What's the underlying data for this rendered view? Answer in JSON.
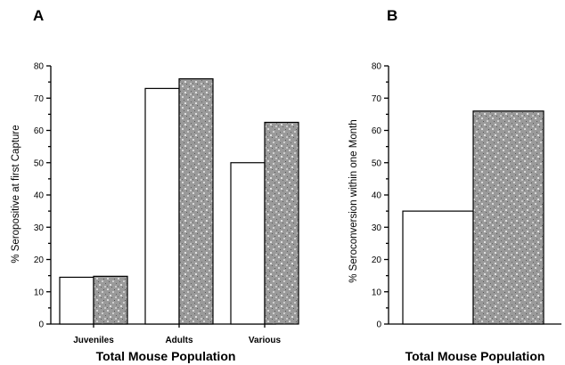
{
  "chart_data": [
    {
      "type": "bar",
      "panel_label": "A",
      "categories": [
        "Juveniles",
        "Adults",
        "Various"
      ],
      "series": [
        {
          "values": [
            14.5,
            73,
            50
          ],
          "color": "#ffffff"
        },
        {
          "values": [
            14.8,
            76,
            62.5
          ],
          "color": "#8a8a8a"
        }
      ],
      "ylabel": "% Seropositive at first Capture",
      "xlabel": "Total Mouse Population",
      "ylim": [
        0,
        80
      ],
      "yticks": [
        0,
        10,
        20,
        30,
        40,
        50,
        60,
        70,
        80
      ],
      "grid": false
    },
    {
      "type": "bar",
      "panel_label": "B",
      "categories": [
        ""
      ],
      "series": [
        {
          "values": [
            35
          ],
          "color": "#ffffff"
        },
        {
          "values": [
            66
          ],
          "color": "#8a8a8a"
        }
      ],
      "ylabel": "% Seroconversion within one Month",
      "xlabel": "Total Mouse Population",
      "ylim": [
        0,
        80
      ],
      "yticks": [
        0,
        10,
        20,
        30,
        40,
        50,
        60,
        70,
        80
      ],
      "grid": false
    }
  ]
}
